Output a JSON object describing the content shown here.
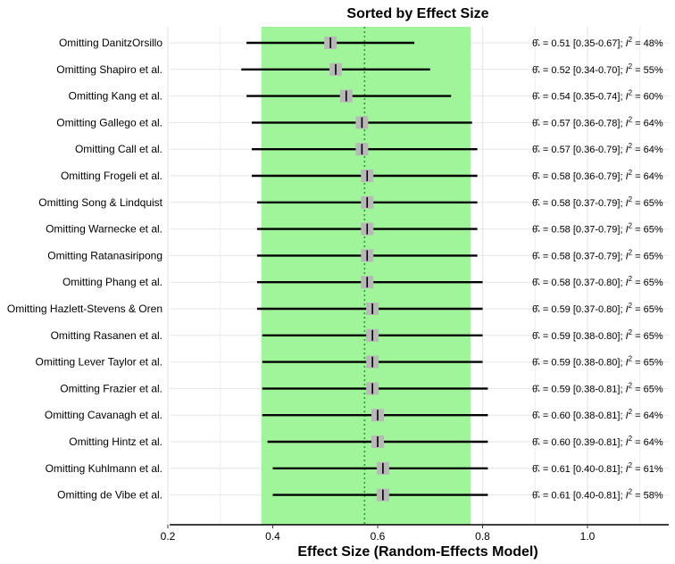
{
  "chart_data": {
    "type": "forest",
    "title": "Sorted by Effect Size",
    "xlabel": "Effect Size (Random-Effects Model)",
    "ylabel": "",
    "xlim": [
      0.2,
      1.15
    ],
    "xticks": [
      "0.2",
      "0.4",
      "0.6",
      "0.8",
      "1.0"
    ],
    "xtick_values": [
      0.2,
      0.4,
      0.6,
      0.8,
      1.0
    ],
    "overall_estimate": 0.575,
    "overall_ci": [
      0.378,
      0.777
    ],
    "band_color": "#a0f59a",
    "marker_color": "#b8b8b8",
    "reference_line_color": "#2ca02c",
    "grid": true,
    "rows": [
      {
        "label": "Omitting DanitzOrsillo",
        "estimate": 0.51,
        "lower": 0.35,
        "upper": 0.67,
        "estimate_text": "0.51",
        "ci_text": "[0.35-0.67]",
        "i2_value": "48%"
      },
      {
        "label": "Omitting Shapiro et al.",
        "estimate": 0.52,
        "lower": 0.34,
        "upper": 0.7,
        "estimate_text": "0.52",
        "ci_text": "[0.34-0.70]",
        "i2_value": "55%"
      },
      {
        "label": "Omitting Kang et al.",
        "estimate": 0.54,
        "lower": 0.35,
        "upper": 0.74,
        "estimate_text": "0.54",
        "ci_text": "[0.35-0.74]",
        "i2_value": "60%"
      },
      {
        "label": "Omitting Gallego et al.",
        "estimate": 0.57,
        "lower": 0.36,
        "upper": 0.78,
        "estimate_text": "0.57",
        "ci_text": "[0.36-0.78]",
        "i2_value": "64%"
      },
      {
        "label": "Omitting Call et al.",
        "estimate": 0.57,
        "lower": 0.36,
        "upper": 0.79,
        "estimate_text": "0.57",
        "ci_text": "[0.36-0.79]",
        "i2_value": "64%"
      },
      {
        "label": "Omitting Frogeli et al.",
        "estimate": 0.58,
        "lower": 0.36,
        "upper": 0.79,
        "estimate_text": "0.58",
        "ci_text": "[0.36-0.79]",
        "i2_value": "64%"
      },
      {
        "label": "Omitting Song & Lindquist",
        "estimate": 0.58,
        "lower": 0.37,
        "upper": 0.79,
        "estimate_text": "0.58",
        "ci_text": "[0.37-0.79]",
        "i2_value": "65%"
      },
      {
        "label": "Omitting Warnecke et al.",
        "estimate": 0.58,
        "lower": 0.37,
        "upper": 0.79,
        "estimate_text": "0.58",
        "ci_text": "[0.37-0.79]",
        "i2_value": "65%"
      },
      {
        "label": "Omitting Ratanasiripong",
        "estimate": 0.58,
        "lower": 0.37,
        "upper": 0.79,
        "estimate_text": "0.58",
        "ci_text": "[0.37-0.79]",
        "i2_value": "65%"
      },
      {
        "label": "Omitting Phang et al.",
        "estimate": 0.58,
        "lower": 0.37,
        "upper": 0.8,
        "estimate_text": "0.58",
        "ci_text": "[0.37-0.80]",
        "i2_value": "65%"
      },
      {
        "label": "Omitting Hazlett-Stevens & Oren",
        "estimate": 0.59,
        "lower": 0.37,
        "upper": 0.8,
        "estimate_text": "0.59",
        "ci_text": "[0.37-0.80]",
        "i2_value": "65%"
      },
      {
        "label": "Omitting Rasanen et al.",
        "estimate": 0.59,
        "lower": 0.38,
        "upper": 0.8,
        "estimate_text": "0.59",
        "ci_text": "[0.38-0.80]",
        "i2_value": "65%"
      },
      {
        "label": "Omitting Lever Taylor et al.",
        "estimate": 0.59,
        "lower": 0.38,
        "upper": 0.8,
        "estimate_text": "0.59",
        "ci_text": "[0.38-0.80]",
        "i2_value": "65%"
      },
      {
        "label": "Omitting Frazier et al.",
        "estimate": 0.59,
        "lower": 0.38,
        "upper": 0.81,
        "estimate_text": "0.59",
        "ci_text": "[0.38-0.81]",
        "i2_value": "65%"
      },
      {
        "label": "Omitting Cavanagh et al.",
        "estimate": 0.6,
        "lower": 0.38,
        "upper": 0.81,
        "estimate_text": "0.60",
        "ci_text": "[0.38-0.81]",
        "i2_value": "64%"
      },
      {
        "label": "Omitting Hintz et al.",
        "estimate": 0.6,
        "lower": 0.39,
        "upper": 0.81,
        "estimate_text": "0.60",
        "ci_text": "[0.39-0.81]",
        "i2_value": "64%"
      },
      {
        "label": "Omitting Kuhlmann et al.",
        "estimate": 0.61,
        "lower": 0.4,
        "upper": 0.81,
        "estimate_text": "0.61",
        "ci_text": "[0.40-0.81]",
        "i2_value": "61%"
      },
      {
        "label": "Omitting de Vibe et al.",
        "estimate": 0.61,
        "lower": 0.4,
        "upper": 0.81,
        "estimate_text": "0.61",
        "ci_text": "[0.40-0.81]",
        "i2_value": "58%"
      }
    ]
  }
}
